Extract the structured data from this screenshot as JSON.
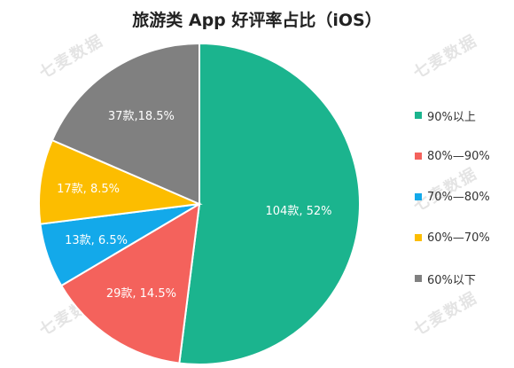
{
  "chart_data": {
    "type": "pie",
    "title": "旅游类 App 好评率占比（iOS）",
    "categories": [
      "90%以上",
      "80%—90%",
      "70%—80%",
      "60%—70%",
      "60%以下"
    ],
    "values": [
      104,
      29,
      13,
      17,
      37
    ],
    "percents": [
      52,
      14.5,
      6.5,
      8.5,
      18.5
    ],
    "labels": [
      "104款, 52%",
      "29款, 14.5%",
      "13款, 6.5%",
      "17款, 8.5%",
      "37款,18.5%"
    ],
    "colors": [
      "#1BB48E",
      "#F4625C",
      "#13A9EA",
      "#FCBD00",
      "#808080"
    ],
    "legend_position": "right"
  },
  "watermark": "七麦数据"
}
